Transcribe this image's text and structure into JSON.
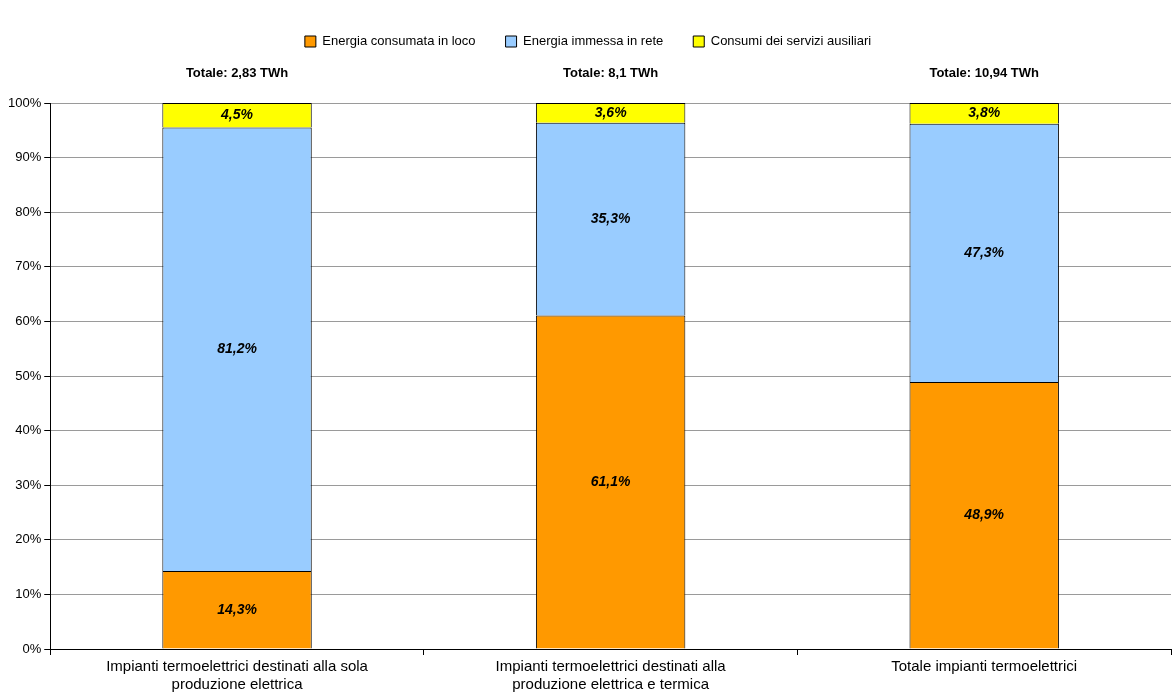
{
  "chart_data": {
    "type": "bar",
    "stacked": true,
    "categories": [
      "Impianti termoelettrici destinati alla sola produzione elettrica",
      "Impianti termoelettrici destinati alla produzione elettrica e termica",
      "Totale impianti termoelettrici"
    ],
    "series": [
      {
        "name": "Energia consumata in loco",
        "color": "#ff9900",
        "values": [
          14.3,
          61.1,
          48.9
        ],
        "value_labels": [
          "14,3%",
          "61,1%",
          "48,9%"
        ]
      },
      {
        "name": "Energia immessa in rete",
        "color": "#99ccff",
        "values": [
          81.2,
          35.3,
          47.3
        ],
        "value_labels": [
          "81,2%",
          "35,3%",
          "47,3%"
        ]
      },
      {
        "name": "Consumi dei servizi ausiliari",
        "color": "#ffff00",
        "values": [
          4.5,
          3.6,
          3.8
        ],
        "value_labels": [
          "4,5%",
          "3,6%",
          "3,8%"
        ]
      }
    ],
    "annotations": [
      {
        "text": "Totale: 2,83 TWh",
        "x": "Impianti termoelettrici destinati alla sola produzione elettrica",
        "y": 100
      },
      {
        "text": "Totale: 8,1 TWh",
        "x": "Impianti termoelettrici destinati alla produzione elettrica e termica",
        "y": 100
      },
      {
        "text": "Totale: 10,94 TWh",
        "x": "Totale impianti termoelettrici",
        "y": 100
      }
    ],
    "ylim": [
      0,
      100
    ],
    "yticks": [
      {
        "value": 0,
        "label": "0%"
      },
      {
        "value": 10,
        "label": "10%"
      },
      {
        "value": 20,
        "label": "20%"
      },
      {
        "value": 30,
        "label": "30%"
      },
      {
        "value": 40,
        "label": "40%"
      },
      {
        "value": 50,
        "label": "50%"
      },
      {
        "value": 60,
        "label": "60%"
      },
      {
        "value": 70,
        "label": "70%"
      },
      {
        "value": 80,
        "label": "80%"
      },
      {
        "value": 90,
        "label": "90%"
      },
      {
        "value": 100,
        "label": "100%"
      }
    ],
    "grid": "y",
    "legend": "top"
  }
}
